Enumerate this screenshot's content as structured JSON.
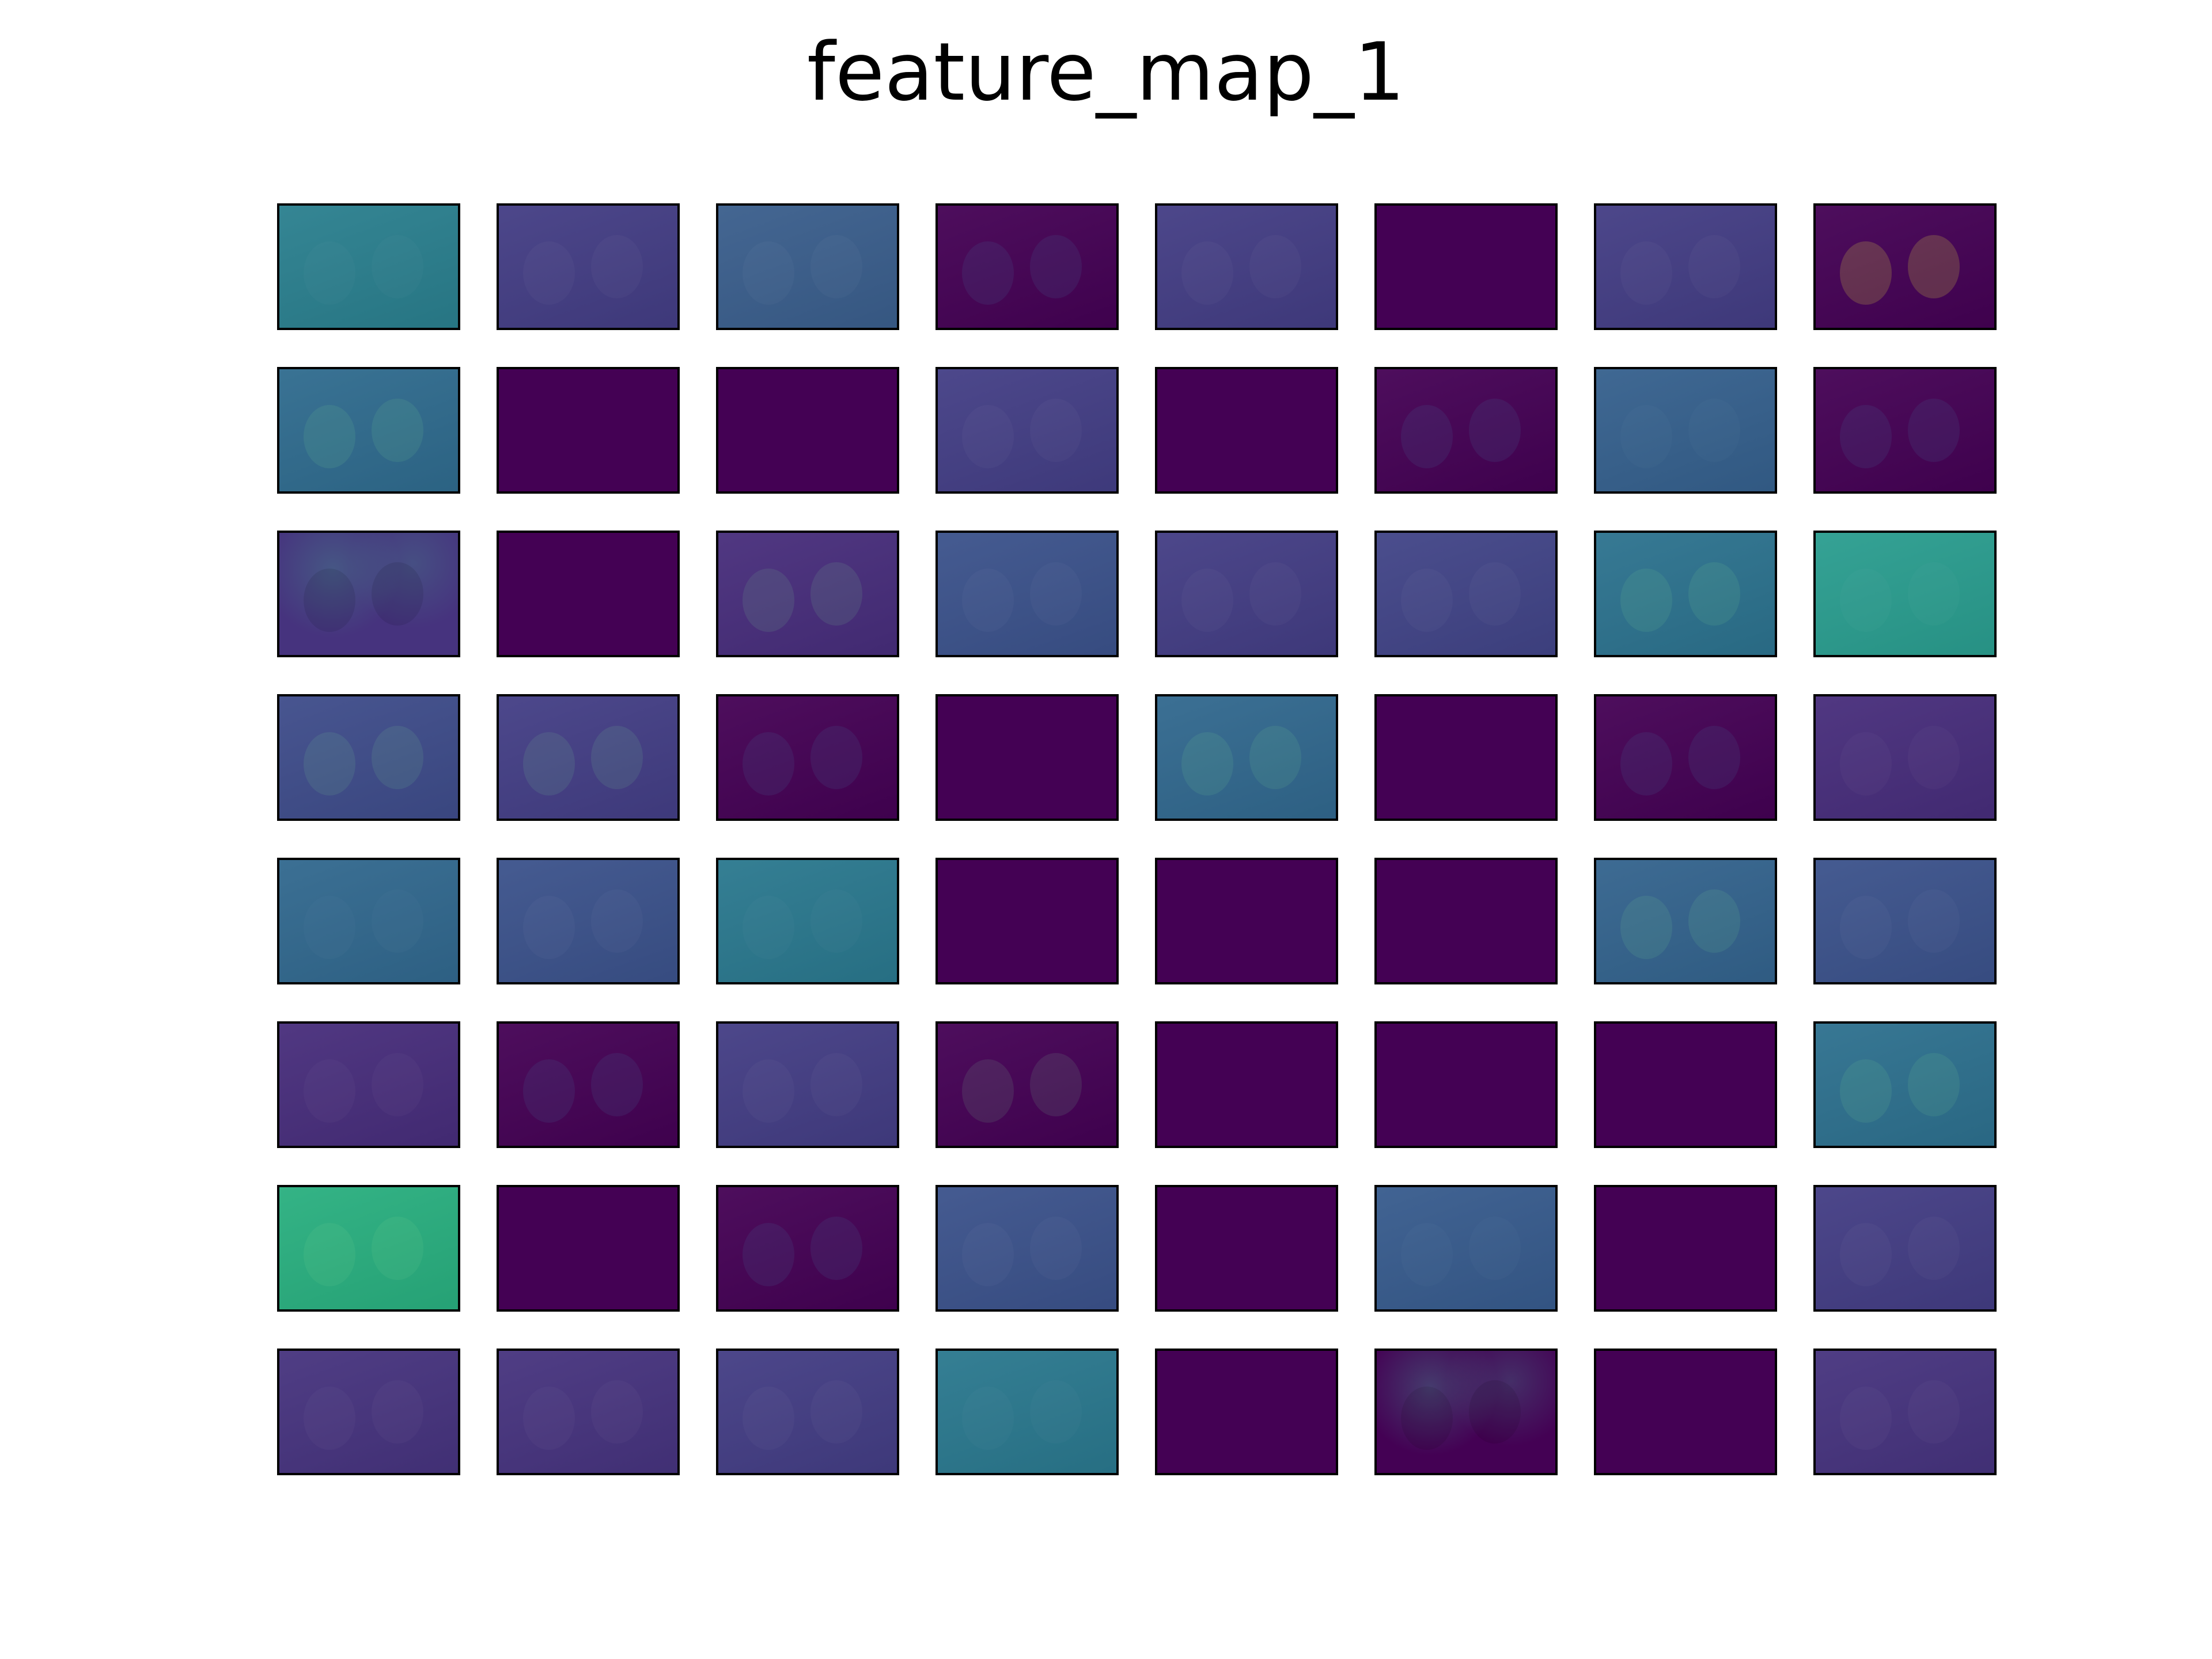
{
  "title": "feature_map_1",
  "colormap": "viridis",
  "grid": {
    "rows": 8,
    "cols": 8
  },
  "tiles": [
    {
      "tone": "#2a7f8e",
      "content": "dogs-faint-edges"
    },
    {
      "tone": "#433d84",
      "content": "dogs-embossed"
    },
    {
      "tone": "#3a5e8c",
      "content": "dogs-embossed"
    },
    {
      "tone": "#440154",
      "content": "dogs-dark-highlights"
    },
    {
      "tone": "#433d84",
      "content": "dogs-embossed"
    },
    {
      "tone": "#440154",
      "content": "blank"
    },
    {
      "tone": "#433d84",
      "content": "dogs-embossed"
    },
    {
      "tone": "#440154",
      "content": "dogs-yellow-highlights"
    },
    {
      "tone": "#2f6b8e",
      "content": "dogs-bright"
    },
    {
      "tone": "#440154",
      "content": "blank"
    },
    {
      "tone": "#440154",
      "content": "blank"
    },
    {
      "tone": "#433e85",
      "content": "dogs-embossed"
    },
    {
      "tone": "#440154",
      "content": "blank"
    },
    {
      "tone": "#440154",
      "content": "dogs-dark-highlights"
    },
    {
      "tone": "#35608d",
      "content": "dogs-faint-edges"
    },
    {
      "tone": "#440154",
      "content": "dogs-dark-highlights"
    },
    {
      "tone": "#46337e",
      "content": "foliage-dark"
    },
    {
      "tone": "#440154",
      "content": "blank"
    },
    {
      "tone": "#472d7b",
      "content": "dogs-bright"
    },
    {
      "tone": "#3b528b",
      "content": "dogs-embossed"
    },
    {
      "tone": "#433d84",
      "content": "dogs-embossed"
    },
    {
      "tone": "#414487",
      "content": "dogs-embossed"
    },
    {
      "tone": "#2c728e",
      "content": "dogs-bright"
    },
    {
      "tone": "#2a9d8f",
      "content": "dogs-faint-edges"
    },
    {
      "tone": "#3e4c8a",
      "content": "dogs-bright"
    },
    {
      "tone": "#433e85",
      "content": "dogs-bright"
    },
    {
      "tone": "#440154",
      "content": "dogs-dark-highlights"
    },
    {
      "tone": "#440154",
      "content": "blank"
    },
    {
      "tone": "#31688e",
      "content": "dogs-bright"
    },
    {
      "tone": "#440154",
      "content": "blank"
    },
    {
      "tone": "#440154",
      "content": "dogs-dark-highlights"
    },
    {
      "tone": "#472d7b",
      "content": "dogs-embossed"
    },
    {
      "tone": "#31688e",
      "content": "dogs-faint-edges"
    },
    {
      "tone": "#3b528b",
      "content": "dogs-embossed"
    },
    {
      "tone": "#2a788e",
      "content": "dogs-faint-edges"
    },
    {
      "tone": "#440154",
      "content": "blank"
    },
    {
      "tone": "#440154",
      "content": "blank"
    },
    {
      "tone": "#440154",
      "content": "blank"
    },
    {
      "tone": "#33638d",
      "content": "dogs-bright"
    },
    {
      "tone": "#3b528b",
      "content": "dogs-embossed"
    },
    {
      "tone": "#472d7b",
      "content": "dogs-embossed"
    },
    {
      "tone": "#440154",
      "content": "dogs-dark-highlights"
    },
    {
      "tone": "#433d84",
      "content": "dogs-embossed"
    },
    {
      "tone": "#440154",
      "content": "dogs-bright"
    },
    {
      "tone": "#440154",
      "content": "blank"
    },
    {
      "tone": "#440154",
      "content": "blank"
    },
    {
      "tone": "#440154",
      "content": "blank"
    },
    {
      "tone": "#2d708e",
      "content": "dogs-bright"
    },
    {
      "tone": "#29af7f",
      "content": "dogs-bright"
    },
    {
      "tone": "#440154",
      "content": "blank"
    },
    {
      "tone": "#440154",
      "content": "dogs-dark-highlights"
    },
    {
      "tone": "#3b528b",
      "content": "dogs-embossed"
    },
    {
      "tone": "#440154",
      "content": "blank"
    },
    {
      "tone": "#375b8d",
      "content": "dogs-faint-edges"
    },
    {
      "tone": "#440154",
      "content": "blank"
    },
    {
      "tone": "#433d84",
      "content": "dogs-embossed"
    },
    {
      "tone": "#46337e",
      "content": "dogs-embossed"
    },
    {
      "tone": "#46337e",
      "content": "dogs-embossed"
    },
    {
      "tone": "#433d84",
      "content": "dogs-embossed"
    },
    {
      "tone": "#2a788e",
      "content": "dogs-faint-edges"
    },
    {
      "tone": "#440154",
      "content": "blank"
    },
    {
      "tone": "#440154",
      "content": "foliage-dark"
    },
    {
      "tone": "#440154",
      "content": "blank"
    },
    {
      "tone": "#46337e",
      "content": "dogs-embossed"
    }
  ]
}
